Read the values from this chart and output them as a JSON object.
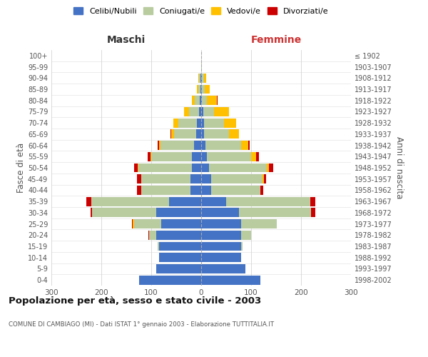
{
  "age_groups_display": [
    "100+",
    "95-99",
    "90-94",
    "85-89",
    "80-84",
    "75-79",
    "70-74",
    "65-69",
    "60-64",
    "55-59",
    "50-54",
    "45-49",
    "40-44",
    "35-39",
    "30-34",
    "25-29",
    "20-24",
    "15-19",
    "10-14",
    "5-9",
    "0-4"
  ],
  "birth_years_display": [
    "≤ 1902",
    "1903-1907",
    "1908-1912",
    "1913-1917",
    "1918-1922",
    "1923-1927",
    "1928-1932",
    "1933-1937",
    "1938-1942",
    "1943-1947",
    "1948-1952",
    "1953-1957",
    "1958-1962",
    "1963-1967",
    "1968-1972",
    "1973-1977",
    "1978-1982",
    "1983-1987",
    "1988-1992",
    "1993-1997",
    "1998-2002"
  ],
  "maschi_celibi": [
    0,
    0,
    2,
    1,
    3,
    5,
    8,
    10,
    14,
    18,
    18,
    22,
    22,
    65,
    90,
    80,
    90,
    85,
    85,
    90,
    125
  ],
  "maschi_coniugati": [
    0,
    0,
    3,
    5,
    10,
    20,
    38,
    45,
    68,
    82,
    108,
    98,
    98,
    155,
    128,
    55,
    14,
    2,
    0,
    0,
    0
  ],
  "maschi_vedovi": [
    0,
    0,
    1,
    3,
    6,
    10,
    10,
    5,
    3,
    2,
    1,
    0,
    0,
    0,
    0,
    2,
    1,
    0,
    0,
    0,
    0
  ],
  "maschi_divorziati": [
    0,
    0,
    0,
    0,
    0,
    0,
    0,
    2,
    2,
    5,
    8,
    8,
    8,
    10,
    4,
    2,
    1,
    0,
    0,
    0,
    0
  ],
  "femmine_nubili": [
    0,
    0,
    1,
    1,
    2,
    4,
    5,
    6,
    8,
    12,
    16,
    20,
    20,
    50,
    75,
    80,
    80,
    80,
    80,
    88,
    118
  ],
  "femmine_coniugate": [
    0,
    1,
    4,
    6,
    10,
    22,
    40,
    50,
    72,
    88,
    115,
    103,
    98,
    168,
    145,
    72,
    20,
    3,
    0,
    0,
    0
  ],
  "femmine_vedove": [
    0,
    0,
    5,
    10,
    20,
    30,
    25,
    20,
    14,
    10,
    5,
    2,
    1,
    1,
    0,
    0,
    0,
    0,
    0,
    0,
    0
  ],
  "femmine_divorziate": [
    0,
    0,
    0,
    0,
    1,
    0,
    0,
    0,
    3,
    5,
    8,
    5,
    5,
    10,
    8,
    0,
    0,
    0,
    0,
    0,
    0
  ],
  "color_celibi": "#4472c4",
  "color_coniugati": "#b8cca0",
  "color_vedovi": "#ffc000",
  "color_divorziati": "#cc0000",
  "title": "Popolazione per età, sesso e stato civile - 2003",
  "subtitle": "COMUNE DI CAMBIAGO (MI) - Dati ISTAT 1° gennaio 2003 - Elaborazione TUTTITALIA.IT",
  "legend_labels": [
    "Celibi/Nubili",
    "Coniugati/e",
    "Vedovi/e",
    "Divorziati/e"
  ],
  "header_maschi": "Maschi",
  "header_femmine": "Femmine",
  "ylabel_left": "Fasce di età",
  "ylabel_right": "Anni di nascita",
  "xlim": 300
}
